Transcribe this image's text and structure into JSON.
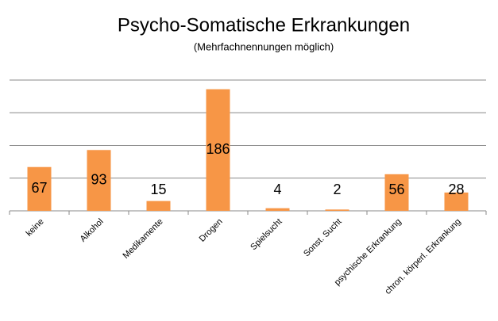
{
  "chart_data": {
    "type": "bar",
    "title": "Psycho-Somatische Erkrankungen",
    "subtitle": "(Mehrfachnennungen möglich)",
    "categories": [
      "keine",
      "Alkohol",
      "Medikamente",
      "Drogen",
      "Spielsucht",
      "Sonst. Sucht",
      "psychische Erkrankung",
      "chron. körperl. Erkrankung"
    ],
    "values": [
      67,
      93,
      15,
      186,
      4,
      2,
      56,
      28
    ],
    "color": "#f79646",
    "ylim": [
      0,
      200
    ],
    "yticks": [
      0,
      50,
      100,
      150,
      200
    ],
    "grid": true
  }
}
